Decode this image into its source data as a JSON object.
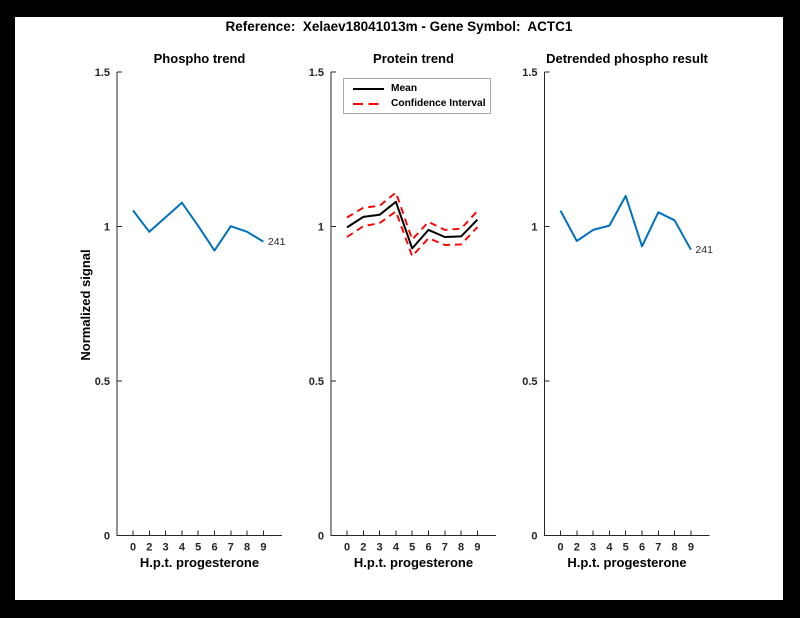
{
  "figure": {
    "title": "Reference:  Xelaev18041013m - Gene Symbol:  ACTC1",
    "background_color": "#000000",
    "canvas_color": "#ffffff",
    "axis_color": "#262626"
  },
  "chart_data": [
    {
      "type": "line",
      "title": "Phospho trend",
      "xlabel": "H.p.t. progesterone",
      "ylabel": "Normalized signal",
      "ylim": [
        0,
        1.5
      ],
      "grid": false,
      "x_tick_labels": [
        "0",
        "2",
        "3",
        "4",
        "5",
        "6",
        "7",
        "8",
        "9"
      ],
      "y_ticks": [
        0,
        0.5,
        1,
        1.5
      ],
      "y_tick_labels": [
        "0",
        "0.5",
        "1",
        "1.5"
      ],
      "series": [
        {
          "name": "phospho-signal",
          "color": "#0072BD",
          "style": "solid",
          "width": 2,
          "values": [
            1.052,
            0.983,
            1.03,
            1.077,
            1.002,
            0.922,
            1.001,
            0.983,
            0.951
          ],
          "end_label": "241"
        }
      ]
    },
    {
      "type": "line",
      "title": "Protein trend",
      "xlabel": "H.p.t. progesterone",
      "ylabel": "",
      "ylim": [
        0,
        1.5
      ],
      "grid": false,
      "x_tick_labels": [
        "0",
        "2",
        "3",
        "4",
        "5",
        "6",
        "7",
        "8",
        "9"
      ],
      "y_ticks": [
        0,
        0.5,
        1,
        1.5
      ],
      "y_tick_labels": [
        "0",
        "0.5",
        "1",
        "1.5"
      ],
      "legend": {
        "position": "northwest",
        "entries": [
          {
            "label": "Mean",
            "color": "#000000",
            "style": "solid"
          },
          {
            "label": "Confidence Interval",
            "color": "#FF0000",
            "style": "dashed"
          }
        ]
      },
      "series": [
        {
          "name": "protein-mean",
          "color": "#000000",
          "style": "solid",
          "width": 2,
          "values": [
            0.997,
            1.031,
            1.038,
            1.08,
            0.929,
            0.989,
            0.966,
            0.968,
            1.022
          ]
        },
        {
          "name": "confidence-upper",
          "color": "#FF0000",
          "style": "dashed",
          "width": 1.9,
          "values": [
            1.029,
            1.061,
            1.067,
            1.11,
            0.958,
            1.015,
            0.989,
            0.993,
            1.05
          ]
        },
        {
          "name": "confidence-lower",
          "color": "#FF0000",
          "style": "dashed",
          "width": 1.9,
          "values": [
            0.966,
            1.001,
            1.011,
            1.049,
            0.904,
            0.962,
            0.94,
            0.942,
            0.998
          ]
        }
      ]
    },
    {
      "type": "line",
      "title": "Detrended phospho result",
      "xlabel": "H.p.t. progesterone",
      "ylabel": "",
      "ylim": [
        0,
        1.5
      ],
      "grid": false,
      "x_tick_labels": [
        "0",
        "2",
        "3",
        "4",
        "5",
        "6",
        "7",
        "8",
        "9"
      ],
      "y_ticks": [
        0,
        0.5,
        1,
        1.5
      ],
      "y_tick_labels": [
        "0",
        "0.5",
        "1",
        "1.5"
      ],
      "series": [
        {
          "name": "detrended-phospho-signal",
          "color": "#0072BD",
          "style": "solid",
          "width": 2,
          "values": [
            1.051,
            0.953,
            0.989,
            1.003,
            1.099,
            0.936,
            1.046,
            1.02,
            0.925
          ],
          "end_label": "241"
        }
      ]
    }
  ]
}
